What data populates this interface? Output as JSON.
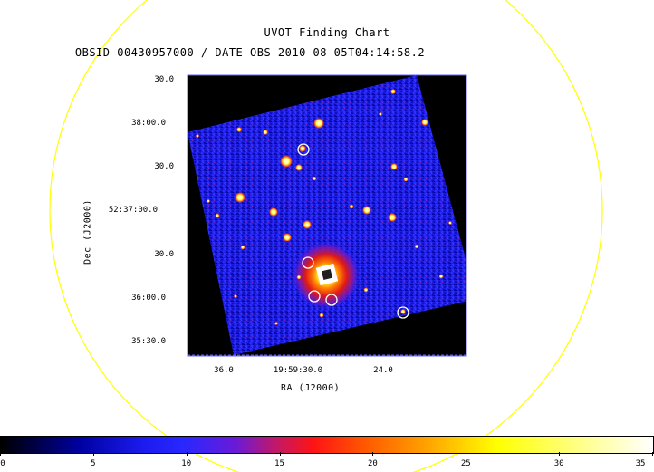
{
  "window": {
    "title": "UVOT Finding Chart",
    "subtitle": "OBSID 00430957000 / DATE-OBS 2010-08-05T04:14:58.2"
  },
  "axes": {
    "xlabel": "RA (J2000)",
    "ylabel": "Dec (J2000)",
    "dec_ticks": [
      "30.0",
      "38:00.0",
      "30.0",
      "52:37:00.0",
      "30.0",
      "36:00.0",
      "35:30.0"
    ],
    "ra_ticks": [
      "36.0",
      "19:59:30.0",
      "24.0"
    ]
  },
  "colorbar": {
    "labels": [
      "0",
      "5",
      "10",
      "15",
      "20",
      "25",
      "30",
      "35"
    ],
    "min": 0,
    "max": 35
  },
  "colors": {
    "field_circle": "#ffff00",
    "background": "#ffffff",
    "sky_black": "#000000",
    "sky_blue": "#1a1ae6",
    "marker": "#ffffff"
  }
}
